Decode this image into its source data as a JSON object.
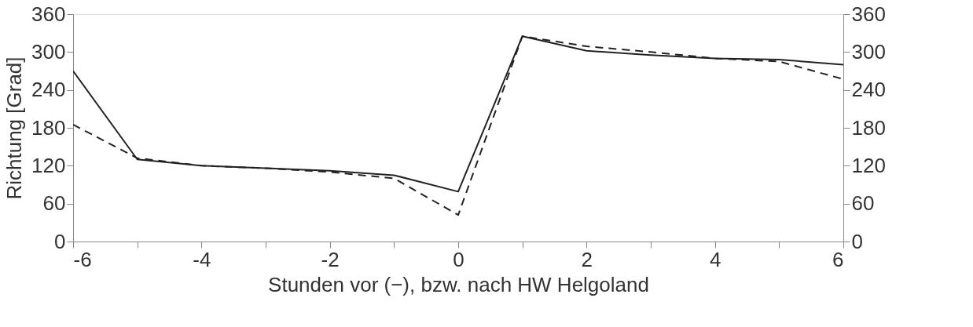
{
  "chart_data": {
    "type": "line",
    "xlabel": "Stunden vor (−), bzw. nach HW Helgoland",
    "ylabel": "Richtung [Grad]",
    "x": [
      -6,
      -5,
      -4,
      -3,
      -2,
      -1,
      0,
      1,
      2,
      3,
      4,
      5,
      6
    ],
    "series": [
      {
        "color": "#222222",
        "line_style": "solid",
        "values": [
          270,
          130,
          120,
          116,
          112,
          105,
          79,
          325,
          302,
          295,
          290,
          288,
          280
        ]
      },
      {
        "color": "#222222",
        "line_style": "dashed",
        "values": [
          185,
          132,
          120,
          116,
          110,
          100,
          42,
          325,
          309,
          300,
          290,
          285,
          257
        ]
      }
    ],
    "xlim": [
      -6,
      6
    ],
    "xticks": [
      -6,
      {
        "value": -5,
        "label": null
      },
      -4,
      {
        "value": -3,
        "label": null
      },
      -2,
      {
        "value": -1,
        "label": null
      },
      0,
      {
        "value": 1,
        "label": null
      },
      2,
      {
        "value": 3,
        "label": null
      },
      4,
      {
        "value": 5,
        "label": null
      },
      6
    ],
    "ylim": [
      0,
      360
    ],
    "yticks": [
      0,
      60,
      120,
      180,
      240,
      300,
      360
    ],
    "y2lim": [
      0,
      360
    ],
    "y2ticks": [
      0,
      60,
      120,
      180,
      240,
      300,
      360
    ],
    "grid": false,
    "marker": "none"
  }
}
